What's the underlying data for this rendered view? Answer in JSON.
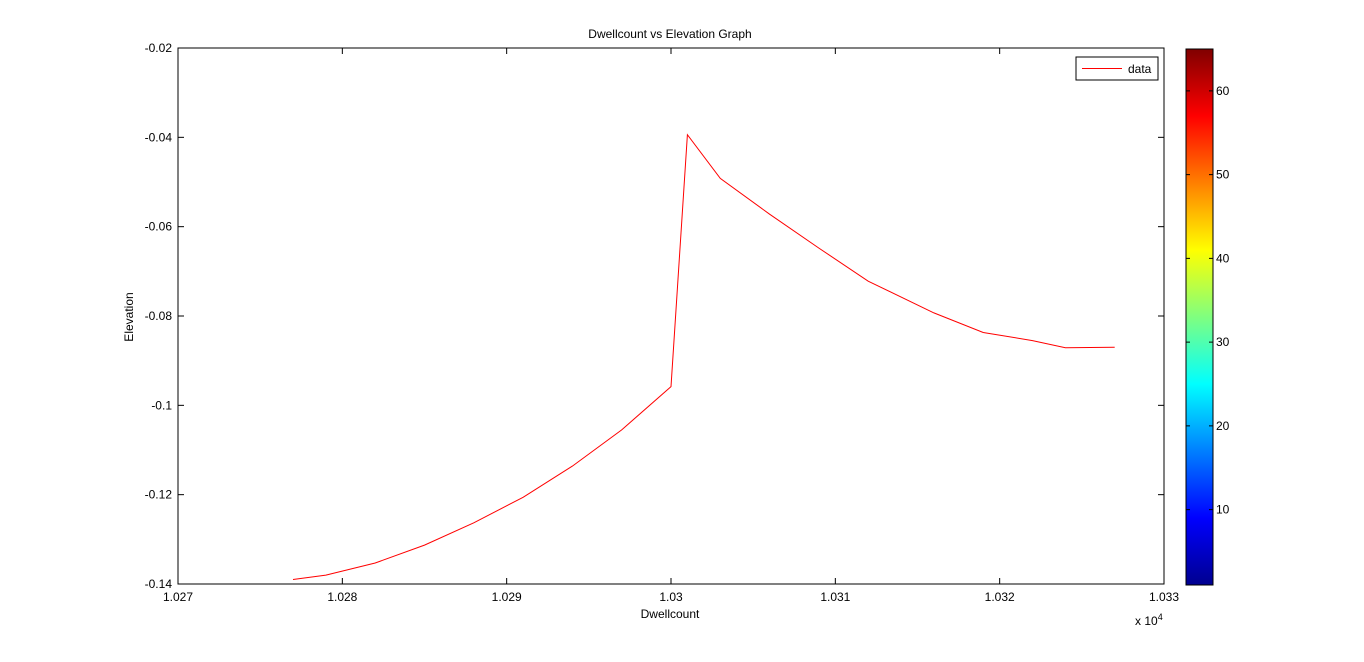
{
  "chart_data": {
    "type": "line",
    "title": "Dwellcount vs Elevation Graph",
    "xlabel": "Dwellcount",
    "ylabel": "Elevation",
    "x_multiplier_label": "x 10",
    "x_multiplier_exponent": "4",
    "xlim": [
      1.027,
      1.033
    ],
    "ylim": [
      -0.14,
      -0.02
    ],
    "xticks": [
      "1.027",
      "1.028",
      "1.029",
      "1.03",
      "1.031",
      "1.032",
      "1.033"
    ],
    "xtick_values": [
      1.027,
      1.028,
      1.029,
      1.03,
      1.031,
      1.032,
      1.033
    ],
    "yticks": [
      "-0.02",
      "-0.04",
      "-0.06",
      "-0.08",
      "-0.1",
      "-0.12",
      "-0.14"
    ],
    "ytick_values": [
      -0.02,
      -0.04,
      -0.06,
      -0.08,
      -0.1,
      -0.12,
      -0.14
    ],
    "grid": false,
    "legend_position": "top-right",
    "series": [
      {
        "name": "data",
        "color": "#ff0000",
        "x": [
          1.0277,
          1.0279,
          1.0282,
          1.0285,
          1.0288,
          1.0291,
          1.0294,
          1.0297,
          1.03,
          1.0301,
          1.0303,
          1.0306,
          1.0309,
          1.0312,
          1.0316,
          1.0319,
          1.0322,
          1.0324,
          1.0327
        ],
        "y": [
          -0.139,
          -0.138,
          -0.1353,
          -0.1313,
          -0.1263,
          -0.1206,
          -0.1136,
          -0.1055,
          -0.0958,
          -0.0394,
          -0.0492,
          -0.0572,
          -0.0648,
          -0.0722,
          -0.0793,
          -0.0837,
          -0.0855,
          -0.0871,
          -0.087
        ]
      }
    ],
    "colorbar": {
      "ticks": [
        "10",
        "20",
        "30",
        "40",
        "50",
        "60"
      ],
      "tick_values": [
        10,
        20,
        30,
        40,
        50,
        60
      ],
      "range": [
        1,
        65
      ],
      "colormap": "jet"
    }
  }
}
